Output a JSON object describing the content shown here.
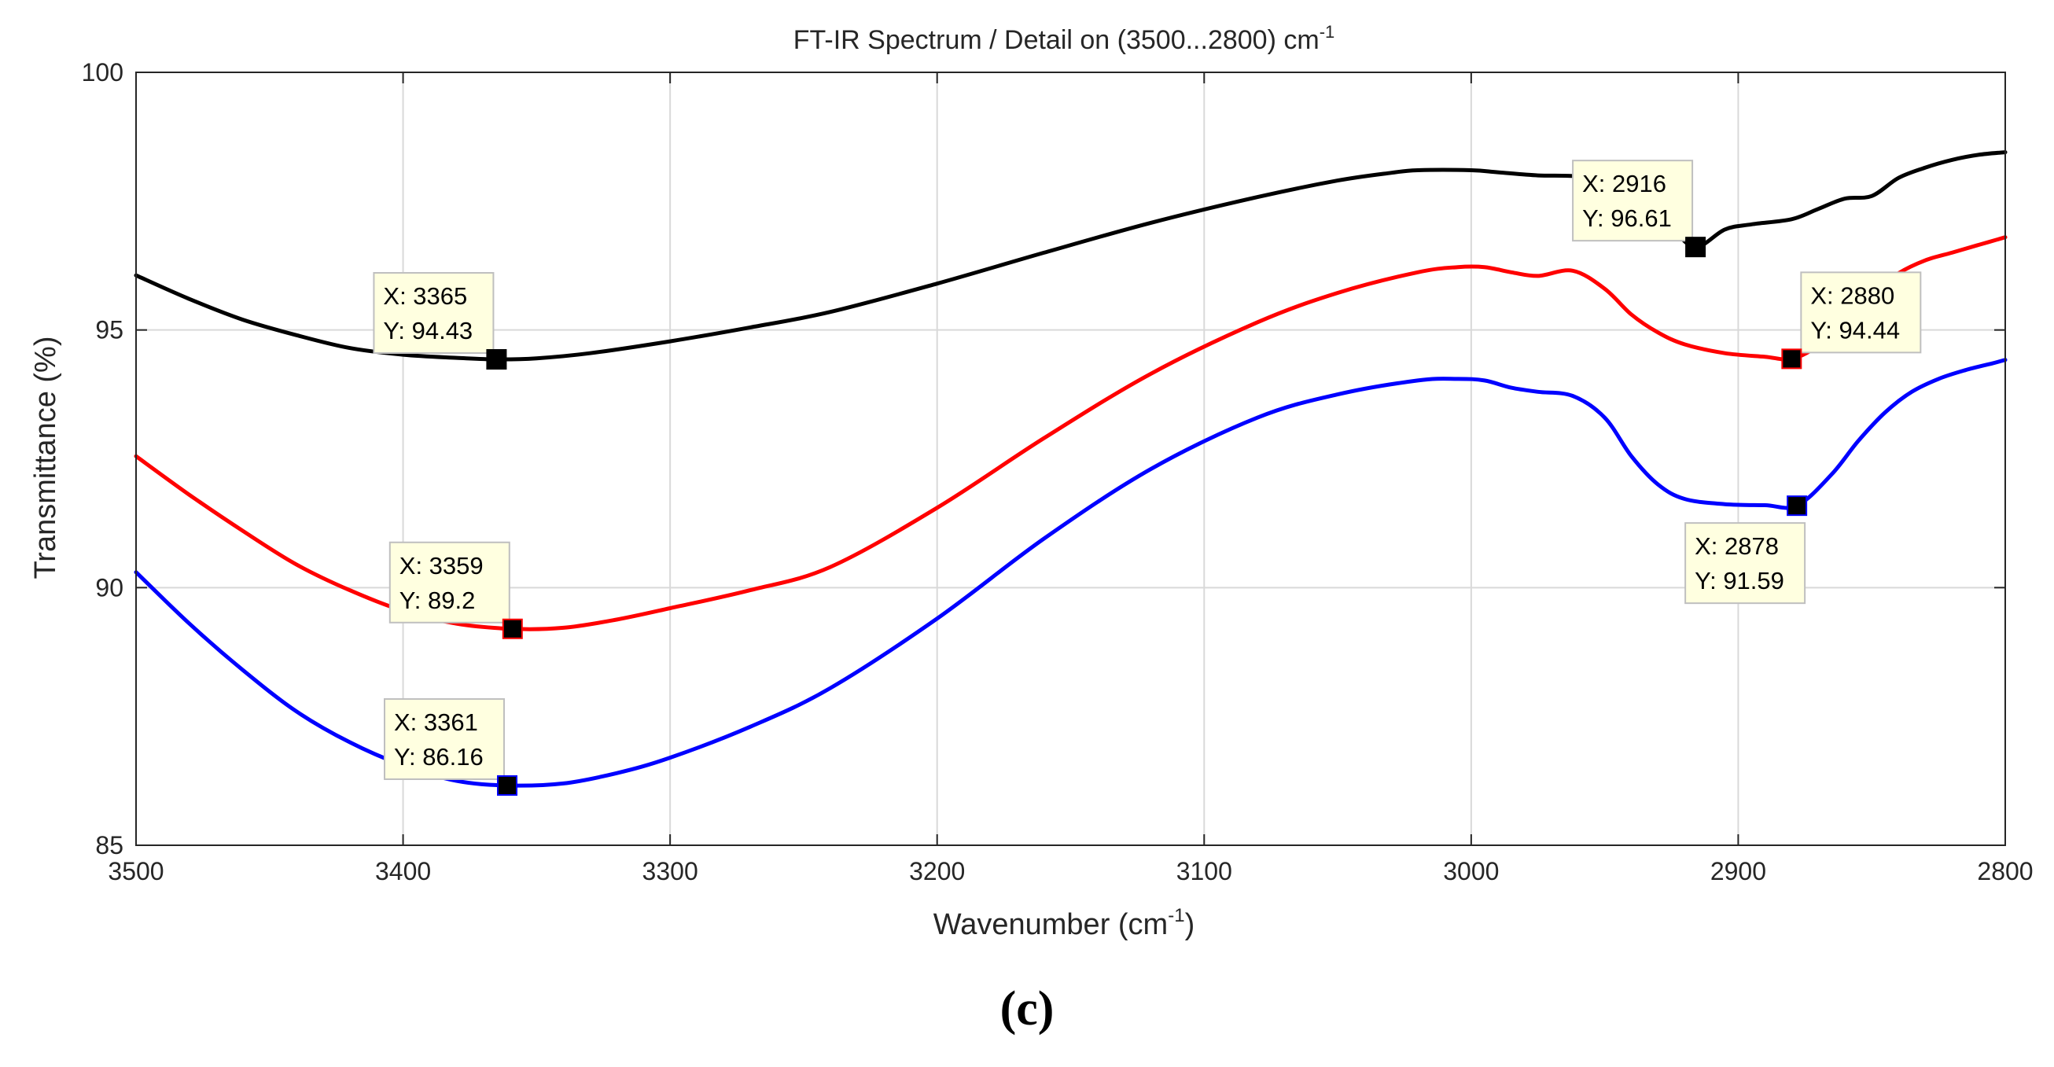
{
  "panel_label": "(c)",
  "chart_data": {
    "type": "line",
    "title": "FT-IR Spectrum / Detail on (3500...2800) cm",
    "title_sup": "-1",
    "xlabel": "Wavenumber (cm",
    "xlabel_sup": "-1",
    "xlabel_end": ")",
    "ylabel": "Transmittance (%)",
    "xlim": [
      3500,
      2800
    ],
    "ylim": [
      85,
      100
    ],
    "x_reversed": true,
    "grid": true,
    "x_ticks": [
      3500,
      3400,
      3300,
      3200,
      3100,
      3000,
      2900,
      2800
    ],
    "y_ticks": [
      85,
      90,
      95,
      100
    ],
    "series": [
      {
        "name": "black",
        "color": "#000000",
        "x": [
          3500,
          3480,
          3460,
          3440,
          3420,
          3400,
          3380,
          3365,
          3350,
          3330,
          3300,
          3270,
          3240,
          3200,
          3160,
          3120,
          3080,
          3050,
          3030,
          3020,
          3000,
          2990,
          2975,
          2960,
          2945,
          2935,
          2925,
          2916,
          2905,
          2895,
          2880,
          2870,
          2860,
          2850,
          2840,
          2830,
          2820,
          2810,
          2800
        ],
        "y": [
          96.06,
          95.6,
          95.2,
          94.9,
          94.65,
          94.52,
          94.46,
          94.43,
          94.45,
          94.55,
          94.78,
          95.05,
          95.35,
          95.9,
          96.5,
          97.08,
          97.58,
          97.9,
          98.05,
          98.1,
          98.1,
          98.06,
          98.0,
          97.98,
          97.85,
          97.6,
          97.0,
          96.61,
          96.95,
          97.05,
          97.15,
          97.35,
          97.55,
          97.6,
          97.95,
          98.15,
          98.3,
          98.4,
          98.45
        ]
      },
      {
        "name": "red",
        "color": "#ff0000",
        "x": [
          3500,
          3480,
          3460,
          3440,
          3420,
          3400,
          3380,
          3359,
          3340,
          3320,
          3300,
          3270,
          3240,
          3200,
          3160,
          3120,
          3080,
          3050,
          3020,
          3005,
          2995,
          2985,
          2975,
          2962,
          2950,
          2940,
          2930,
          2920,
          2905,
          2890,
          2880,
          2870,
          2860,
          2850,
          2840,
          2830,
          2820,
          2810,
          2800
        ],
        "y": [
          92.55,
          91.8,
          91.1,
          90.45,
          89.95,
          89.55,
          89.3,
          89.2,
          89.22,
          89.38,
          89.6,
          89.95,
          90.4,
          91.55,
          92.9,
          94.15,
          95.15,
          95.72,
          96.12,
          96.22,
          96.22,
          96.12,
          96.05,
          96.15,
          95.8,
          95.3,
          94.95,
          94.72,
          94.55,
          94.48,
          94.44,
          94.7,
          95.2,
          95.7,
          96.1,
          96.35,
          96.5,
          96.65,
          96.8
        ]
      },
      {
        "name": "blue",
        "color": "#0000ff",
        "x": [
          3500,
          3480,
          3460,
          3440,
          3420,
          3400,
          3380,
          3361,
          3340,
          3320,
          3300,
          3270,
          3240,
          3200,
          3160,
          3120,
          3080,
          3050,
          3020,
          3005,
          2995,
          2985,
          2975,
          2962,
          2950,
          2940,
          2930,
          2920,
          2905,
          2890,
          2878,
          2865,
          2855,
          2845,
          2835,
          2825,
          2815,
          2805,
          2800
        ],
        "y": [
          90.3,
          89.3,
          88.4,
          87.6,
          87.0,
          86.55,
          86.25,
          86.16,
          86.2,
          86.4,
          86.7,
          87.3,
          88.05,
          89.4,
          90.95,
          92.3,
          93.3,
          93.75,
          94.02,
          94.05,
          94.02,
          93.88,
          93.8,
          93.72,
          93.3,
          92.55,
          92.0,
          91.72,
          91.62,
          91.6,
          91.59,
          92.2,
          92.85,
          93.4,
          93.8,
          94.05,
          94.22,
          94.35,
          94.42
        ]
      }
    ],
    "data_tips": [
      {
        "series": "black",
        "x": 3365,
        "y": 94.43,
        "x_text": "X: 3365",
        "y_text": "Y: 94.43",
        "box_anchor": "above-left"
      },
      {
        "series": "black",
        "x": 2916,
        "y": 96.61,
        "x_text": "X: 2916",
        "y_text": "Y: 96.61",
        "box_anchor": "above-left"
      },
      {
        "series": "red",
        "x": 3359,
        "y": 89.2,
        "x_text": "X: 3359",
        "y_text": "Y: 89.2",
        "box_anchor": "above-left"
      },
      {
        "series": "red",
        "x": 2880,
        "y": 94.44,
        "x_text": "X: 2880",
        "y_text": "Y: 94.44",
        "box_anchor": "above-right"
      },
      {
        "series": "blue",
        "x": 3361,
        "y": 86.16,
        "x_text": "X: 3361",
        "y_text": "Y: 86.16",
        "box_anchor": "above-left"
      },
      {
        "series": "blue",
        "x": 2878,
        "y": 91.59,
        "x_text": "X: 2878",
        "y_text": "Y: 91.59",
        "box_anchor": "below-left"
      }
    ]
  }
}
